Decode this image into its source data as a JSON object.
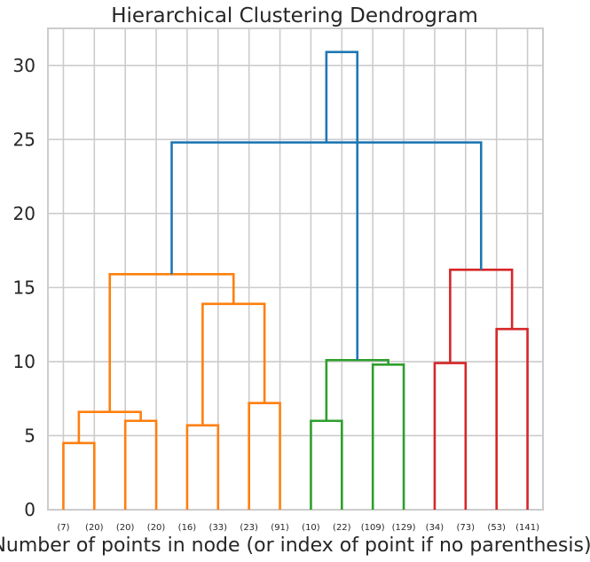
{
  "chart_data": {
    "type": "dendrogram",
    "title": "Hierarchical Clustering Dendrogram",
    "xlabel": "Number of points in node (or index of point if no parenthesis).",
    "ylabel": "",
    "ylim": [
      0,
      32.5
    ],
    "yticks": [
      0,
      5,
      10,
      15,
      20,
      25,
      30
    ],
    "grid": true,
    "leaves": [
      "(7)",
      "(20)",
      "(20)",
      "(20)",
      "(16)",
      "(33)",
      "(23)",
      "(91)",
      "(10)",
      "(22)",
      "(109)",
      "(129)",
      "(34)",
      "(73)",
      "(53)",
      "(141)"
    ],
    "colors": {
      "orange": "#ff7f0e",
      "green": "#2ca02c",
      "red": "#d62728",
      "blue": "#1f77b4"
    },
    "links": [
      {
        "left": 0,
        "right": 1,
        "height": 4.5,
        "color": "orange"
      },
      {
        "left": 2,
        "right": 3,
        "height": 6.0,
        "color": "orange"
      },
      {
        "left": 4,
        "right": 5,
        "height": 5.7,
        "color": "orange"
      },
      {
        "left": 6,
        "right": 7,
        "height": 7.2,
        "color": "orange"
      },
      {
        "left": 8,
        "right": 9,
        "height": 6.0,
        "color": "green"
      },
      {
        "left": 10,
        "right": 11,
        "height": 9.8,
        "color": "green"
      },
      {
        "left": 12,
        "right": 13,
        "height": 9.9,
        "color": "red"
      },
      {
        "left": 14,
        "right": 15,
        "height": 12.2,
        "color": "red"
      },
      {
        "left": 16,
        "right": 17,
        "height": 6.6,
        "color": "orange"
      },
      {
        "left": 18,
        "right": 19,
        "height": 13.9,
        "color": "orange"
      },
      {
        "left": 20,
        "right": 21,
        "height": 10.1,
        "color": "green"
      },
      {
        "left": 22,
        "right": 23,
        "height": 16.2,
        "color": "red"
      },
      {
        "left": 24,
        "right": 25,
        "height": 15.9,
        "color": "orange"
      },
      {
        "left": 28,
        "right": 27,
        "height": 24.8,
        "color": "blue"
      },
      {
        "left": 26,
        "right": 29,
        "height": 30.9,
        "color": "blue"
      }
    ]
  }
}
